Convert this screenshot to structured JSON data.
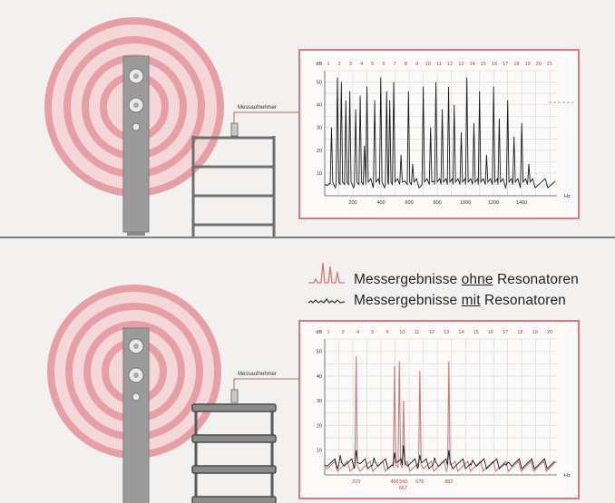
{
  "colors": {
    "background": "#f2f1ef",
    "rings": "#e8a5a9",
    "speaker": "#9a9a9a",
    "rack": "#6e6e6e",
    "chart_frame": "#d87a7f",
    "with_resonators": "#1a1a1a",
    "without_resonators": "#c97a7d"
  },
  "top": {
    "mic_label": "Messaufnehmer"
  },
  "bottom": {
    "mic_label": "Messaufnehmer"
  },
  "legend": {
    "line1_pre": "Messergebnisse ",
    "line1_em": "ohne",
    "line1_post": " Resonatoren",
    "line2_pre": "Messergebnisse ",
    "line2_em": "mit",
    "line2_post": " Resonatoren"
  },
  "chart_data": [
    {
      "type": "line",
      "xlabel": "Hz",
      "ylabel": "dB",
      "xlim": [
        0,
        1650
      ],
      "ylim": [
        0,
        55
      ],
      "xticks": [
        "200",
        "400",
        "600",
        "800",
        "1000",
        "1200",
        "1400"
      ],
      "xtick_values": [
        200,
        400,
        600,
        800,
        1000,
        1200,
        1400
      ],
      "yticks": [
        "10",
        "20",
        "30",
        "40",
        "50"
      ],
      "peak_labels": [
        "1",
        "2",
        "3",
        "4",
        "5",
        "6",
        "7",
        "8",
        "9",
        "10",
        "11",
        "12",
        "13",
        "14",
        "15",
        "16",
        "17",
        "18",
        "19",
        "20",
        "21"
      ],
      "series": [
        {
          "peaks_hz": [
            48,
            90,
            118,
            150,
            178,
            220,
            252,
            282,
            300,
            355,
            398,
            440,
            462,
            490,
            542,
            595,
            625,
            700,
            752,
            790,
            835,
            880,
            920,
            970,
            1010,
            1060,
            1100,
            1150,
            1200,
            1240,
            1300,
            1345,
            1400,
            1450
          ],
          "peaks_db": [
            30,
            52,
            50,
            42,
            46,
            38,
            44,
            22,
            48,
            42,
            52,
            46,
            42,
            50,
            18,
            46,
            14,
            48,
            30,
            50,
            38,
            48,
            40,
            28,
            52,
            32,
            46,
            18,
            48,
            34,
            42,
            26,
            32,
            14
          ]
        }
      ]
    },
    {
      "type": "line",
      "xlabel": "Hz",
      "ylabel": "dB",
      "xlim": [
        0,
        1650
      ],
      "ylim": [
        0,
        55
      ],
      "xticks": [
        "223",
        "496",
        "560",
        "676",
        "882"
      ],
      "xtick_values": [
        223,
        496,
        560,
        676,
        882
      ],
      "extra_tick": "557",
      "yticks": [
        "10",
        "20",
        "30",
        "40",
        "50"
      ],
      "peak_labels": [
        "1",
        "2",
        "4",
        "5",
        "6",
        "10",
        "11",
        "12",
        "13",
        "14",
        "15",
        "16",
        "17",
        "18",
        "19",
        "20"
      ],
      "series": [
        {
          "name": "Messergebnisse ohne Resonatoren",
          "peaks_hz": [
            223,
            496,
            530,
            560,
            676,
            882
          ],
          "peaks_db": [
            48,
            44,
            46,
            30,
            42,
            46
          ]
        },
        {
          "name": "Messergebnisse mit Resonatoren",
          "peaks_hz": [
            110,
            223,
            350,
            496,
            560,
            676,
            780,
            882,
            1050,
            1300
          ],
          "peaks_db": [
            8,
            10,
            7,
            9,
            12,
            8,
            7,
            10,
            6,
            5
          ]
        }
      ]
    }
  ]
}
